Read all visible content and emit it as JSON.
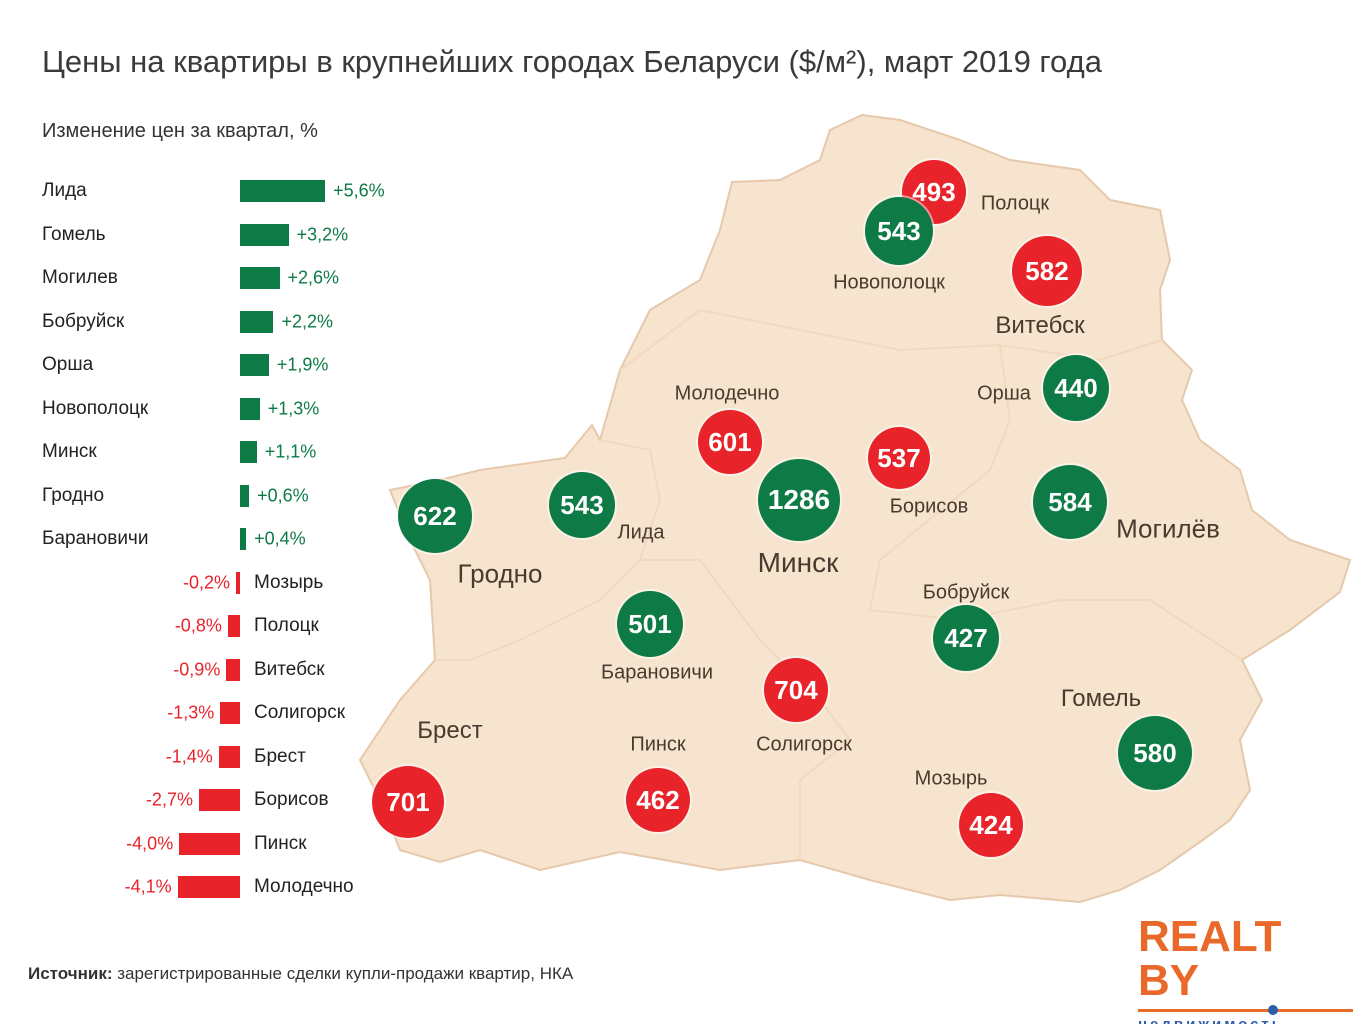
{
  "title": "Цены на квартиры в крупнейших городах Беларуси ($/м²), март 2019 года",
  "source": {
    "label": "Источник:",
    "text": " зарегистрированные сделки купли-продажи квартир, НКА"
  },
  "logo": {
    "text": "REALT BY",
    "sub": "недвижимость"
  },
  "colors": {
    "up": "#0e7a45",
    "down": "#e8232a",
    "map_fill": "#f7e4cf",
    "map_stroke": "#e6c9aa",
    "logo": "#e8692a",
    "logo_sub": "#2f5ea8"
  },
  "chart_data": {
    "type": "bar",
    "title": "Изменение цен за квартал, %",
    "orientation": "horizontal",
    "categories": [
      "Лида",
      "Гомель",
      "Могилев",
      "Бобруйск",
      "Орша",
      "Новополоцк",
      "Минск",
      "Гродно",
      "Барановичи",
      "Мозырь",
      "Полоцк",
      "Витебск",
      "Солигорск",
      "Брест",
      "Борисов",
      "Пинск",
      "Молодечно"
    ],
    "values": [
      5.6,
      3.2,
      2.6,
      2.2,
      1.9,
      1.3,
      1.1,
      0.6,
      0.4,
      -0.2,
      -0.8,
      -0.9,
      -1.3,
      -1.4,
      -2.7,
      -4.0,
      -4.1
    ],
    "labels": [
      "+5,6%",
      "+3,2%",
      "+2,6%",
      "+2,2%",
      "+1,9%",
      "+1,3%",
      "+1,1%",
      "+0,6%",
      "+0,4%",
      "-0,2%",
      "-0,8%",
      "-0,9%",
      "-1,3%",
      "-1,4%",
      "-2,7%",
      "-4,0%",
      "-4,1%"
    ]
  },
  "map": {
    "cities": [
      {
        "name": "Полоцк",
        "price": "493",
        "trend": "down"
      },
      {
        "name": "Новополоцк",
        "price": "543",
        "trend": "up"
      },
      {
        "name": "Витебск",
        "price": "582",
        "trend": "down"
      },
      {
        "name": "Орша",
        "price": "440",
        "trend": "up"
      },
      {
        "name": "Молодечно",
        "price": "601",
        "trend": "down"
      },
      {
        "name": "Минск",
        "price": "1286",
        "trend": "up"
      },
      {
        "name": "Борисов",
        "price": "537",
        "trend": "down"
      },
      {
        "name": "Могилёв",
        "price": "584",
        "trend": "up"
      },
      {
        "name": "Гродно",
        "price": "622",
        "trend": "up"
      },
      {
        "name": "Лида",
        "price": "543",
        "trend": "up"
      },
      {
        "name": "Барановичи",
        "price": "501",
        "trend": "up"
      },
      {
        "name": "Бобруйск",
        "price": "427",
        "trend": "up"
      },
      {
        "name": "Солигорск",
        "price": "704",
        "trend": "down"
      },
      {
        "name": "Гомель",
        "price": "580",
        "trend": "up"
      },
      {
        "name": "Брест",
        "price": "701",
        "trend": "down"
      },
      {
        "name": "Пинск",
        "price": "462",
        "trend": "down"
      },
      {
        "name": "Мозырь",
        "price": "424",
        "trend": "down"
      }
    ]
  }
}
